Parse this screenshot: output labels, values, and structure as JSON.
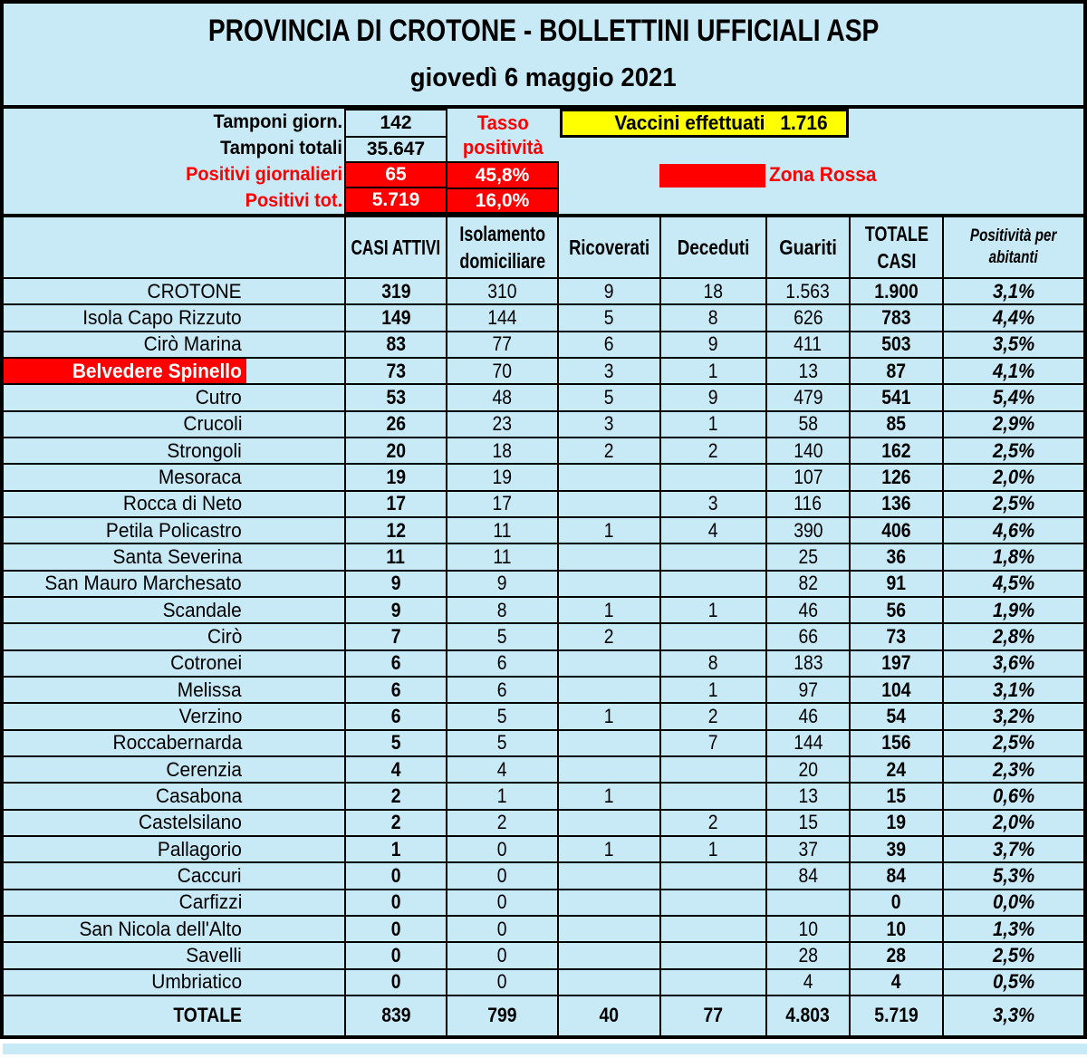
{
  "title": "PROVINCIA DI CROTONE - BOLLETTINI UFFICIALI ASP",
  "subtitle": "giovedì 6 maggio 2021",
  "colors": {
    "background": "#c8e9f6",
    "highlight_red": "#ff0000",
    "vaccini_yellow": "#ffff00",
    "border_black": "#000000",
    "text_white": "#ffffff"
  },
  "stats": {
    "rows": [
      {
        "label": "Tamponi giorn.",
        "value": "142",
        "style": "plain"
      },
      {
        "label": "Tamponi totali",
        "value": "35.647",
        "style": "plain"
      },
      {
        "label": "Positivi giornalieri",
        "value": "65",
        "style": "red"
      },
      {
        "label": "Positivi tot.",
        "value": "5.719",
        "style": "red"
      }
    ],
    "tasso": {
      "label": "Tasso\npositività",
      "values": [
        "45,8%",
        "16,0%"
      ]
    },
    "vaccini": {
      "label": "Vaccini effettuati",
      "value": "1.716"
    },
    "zona": {
      "label": "Zona Rossa"
    }
  },
  "table": {
    "headers": {
      "name": "",
      "casi_attivi": "CASI ATTIVI",
      "isolamento": "Isolamento\ndomiciliare",
      "ricoverati": "Ricoverati",
      "deceduti": "Deceduti",
      "guariti": "Guariti",
      "totale_casi": "TOTALE\nCASI",
      "positivita": "Positività per\nabitanti"
    },
    "rows": [
      {
        "name": "CROTONE",
        "highlight": false,
        "values": [
          "319",
          "310",
          "9",
          "18",
          "1.563",
          "1.900",
          "3,1%"
        ]
      },
      {
        "name": "Isola Capo Rizzuto",
        "highlight": false,
        "values": [
          "149",
          "144",
          "5",
          "8",
          "626",
          "783",
          "4,4%"
        ]
      },
      {
        "name": "Cirò Marina",
        "highlight": false,
        "values": [
          "83",
          "77",
          "6",
          "9",
          "411",
          "503",
          "3,5%"
        ]
      },
      {
        "name": "Belvedere Spinello",
        "highlight": true,
        "values": [
          "73",
          "70",
          "3",
          "1",
          "13",
          "87",
          "4,1%"
        ]
      },
      {
        "name": "Cutro",
        "highlight": false,
        "values": [
          "53",
          "48",
          "5",
          "9",
          "479",
          "541",
          "5,4%"
        ]
      },
      {
        "name": "Crucoli",
        "highlight": false,
        "values": [
          "26",
          "23",
          "3",
          "1",
          "58",
          "85",
          "2,9%"
        ]
      },
      {
        "name": "Strongoli",
        "highlight": false,
        "values": [
          "20",
          "18",
          "2",
          "2",
          "140",
          "162",
          "2,5%"
        ]
      },
      {
        "name": "Mesoraca",
        "highlight": false,
        "values": [
          "19",
          "19",
          "",
          "",
          "107",
          "126",
          "2,0%"
        ]
      },
      {
        "name": "Rocca di Neto",
        "highlight": false,
        "values": [
          "17",
          "17",
          "",
          "3",
          "116",
          "136",
          "2,5%"
        ]
      },
      {
        "name": "Petila Policastro",
        "highlight": false,
        "values": [
          "12",
          "11",
          "1",
          "4",
          "390",
          "406",
          "4,6%"
        ]
      },
      {
        "name": "Santa Severina",
        "highlight": false,
        "values": [
          "11",
          "11",
          "",
          "",
          "25",
          "36",
          "1,8%"
        ]
      },
      {
        "name": "San Mauro Marchesato",
        "highlight": false,
        "values": [
          "9",
          "9",
          "",
          "",
          "82",
          "91",
          "4,5%"
        ]
      },
      {
        "name": "Scandale",
        "highlight": false,
        "values": [
          "9",
          "8",
          "1",
          "1",
          "46",
          "56",
          "1,9%"
        ]
      },
      {
        "name": "Cirò",
        "highlight": false,
        "values": [
          "7",
          "5",
          "2",
          "",
          "66",
          "73",
          "2,8%"
        ]
      },
      {
        "name": "Cotronei",
        "highlight": false,
        "values": [
          "6",
          "6",
          "",
          "8",
          "183",
          "197",
          "3,6%"
        ]
      },
      {
        "name": "Melissa",
        "highlight": false,
        "values": [
          "6",
          "6",
          "",
          "1",
          "97",
          "104",
          "3,1%"
        ]
      },
      {
        "name": "Verzino",
        "highlight": false,
        "values": [
          "6",
          "5",
          "1",
          "2",
          "46",
          "54",
          "3,2%"
        ]
      },
      {
        "name": "Roccabernarda",
        "highlight": false,
        "values": [
          "5",
          "5",
          "",
          "7",
          "144",
          "156",
          "2,5%"
        ]
      },
      {
        "name": "Cerenzia",
        "highlight": false,
        "values": [
          "4",
          "4",
          "",
          "",
          "20",
          "24",
          "2,3%"
        ]
      },
      {
        "name": "Casabona",
        "highlight": false,
        "values": [
          "2",
          "1",
          "1",
          "",
          "13",
          "15",
          "0,6%"
        ]
      },
      {
        "name": "Castelsilano",
        "highlight": false,
        "values": [
          "2",
          "2",
          "",
          "2",
          "15",
          "19",
          "2,0%"
        ]
      },
      {
        "name": "Pallagorio",
        "highlight": false,
        "values": [
          "1",
          "0",
          "1",
          "1",
          "37",
          "39",
          "3,7%"
        ]
      },
      {
        "name": "Caccuri",
        "highlight": false,
        "values": [
          "0",
          "0",
          "",
          "",
          "84",
          "84",
          "5,3%"
        ]
      },
      {
        "name": "Carfizzi",
        "highlight": false,
        "values": [
          "0",
          "0",
          "",
          "",
          "",
          "0",
          "0,0%"
        ]
      },
      {
        "name": "San Nicola dell'Alto",
        "highlight": false,
        "values": [
          "0",
          "0",
          "",
          "",
          "10",
          "10",
          "1,3%"
        ]
      },
      {
        "name": "Savelli",
        "highlight": false,
        "values": [
          "0",
          "0",
          "",
          "",
          "28",
          "28",
          "2,5%"
        ]
      },
      {
        "name": "Umbriatico",
        "highlight": false,
        "values": [
          "0",
          "0",
          "",
          "",
          "4",
          "4",
          "0,5%"
        ]
      }
    ],
    "total": {
      "name": "TOTALE",
      "values": [
        "839",
        "799",
        "40",
        "77",
        "4.803",
        "5.719",
        "3,3%"
      ]
    }
  },
  "chart_data": {
    "type": "table",
    "title": "PROVINCIA DI CROTONE - BOLLETTINI UFFICIALI ASP",
    "date": "giovedì 6 maggio 2021",
    "columns": [
      "",
      "CASI ATTIVI",
      "Isolamento domiciliare",
      "Ricoverati",
      "Deceduti",
      "Guariti",
      "TOTALE CASI",
      "Positività per abitanti"
    ]
  }
}
